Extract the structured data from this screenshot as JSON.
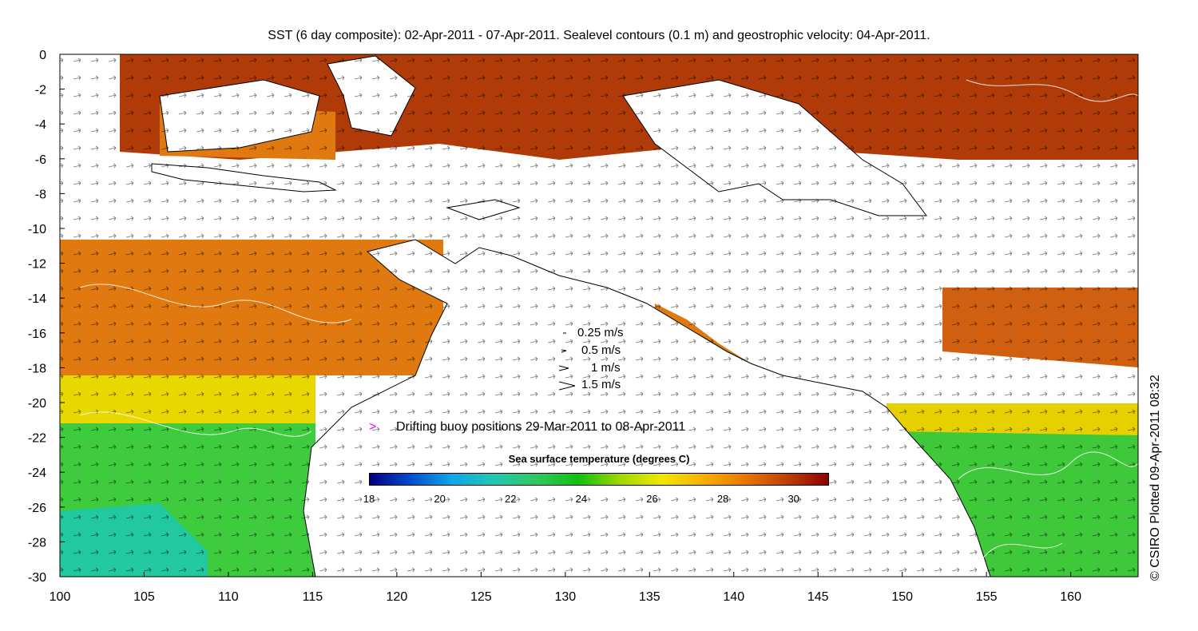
{
  "title": "SST (6 day composite): 02-Apr-2011 - 07-Apr-2011. Sealevel contours (0.1 m) and geostrophic velocity: 04-Apr-2011.",
  "credit": "© CSIRO Plotted 09-Apr-2011 08:32",
  "x_axis": {
    "range": [
      100,
      164
    ],
    "ticks": [
      "100",
      "105",
      "110",
      "115",
      "120",
      "125",
      "130",
      "135",
      "140",
      "145",
      "150",
      "155",
      "160"
    ]
  },
  "y_axis": {
    "range": [
      -30,
      0
    ],
    "ticks": [
      "0",
      "-2",
      "-4",
      "-6",
      "-8",
      "-10",
      "-12",
      "-14",
      "-16",
      "-18",
      "-20",
      "-22",
      "-24",
      "-26",
      "-28",
      "-30"
    ]
  },
  "velocity_legend": [
    "0.25 m/s",
    "0.5 m/s",
    "1 m/s",
    "1.5 m/s"
  ],
  "buoy_legend": "Drifting buoy positions 29-Mar-2011 to 08-Apr-2011",
  "colorbar": {
    "title": "Sea surface temperature (degrees C)",
    "range": [
      18,
      31
    ],
    "labels": [
      "18",
      "20",
      "22",
      "24",
      "26",
      "28",
      "30"
    ],
    "colors": [
      "#00007f",
      "#0050d0",
      "#10a8e8",
      "#20c8b0",
      "#30c860",
      "#10c010",
      "#a0d800",
      "#f0e800",
      "#f8b000",
      "#e87800",
      "#c04000",
      "#8c0000"
    ]
  },
  "colors": {
    "warm": "#e07a10",
    "hot": "#b03a08",
    "mild": "#f0c000",
    "cool": "#40c830",
    "land": "#ffffff",
    "buoy": "#ff00ff"
  }
}
